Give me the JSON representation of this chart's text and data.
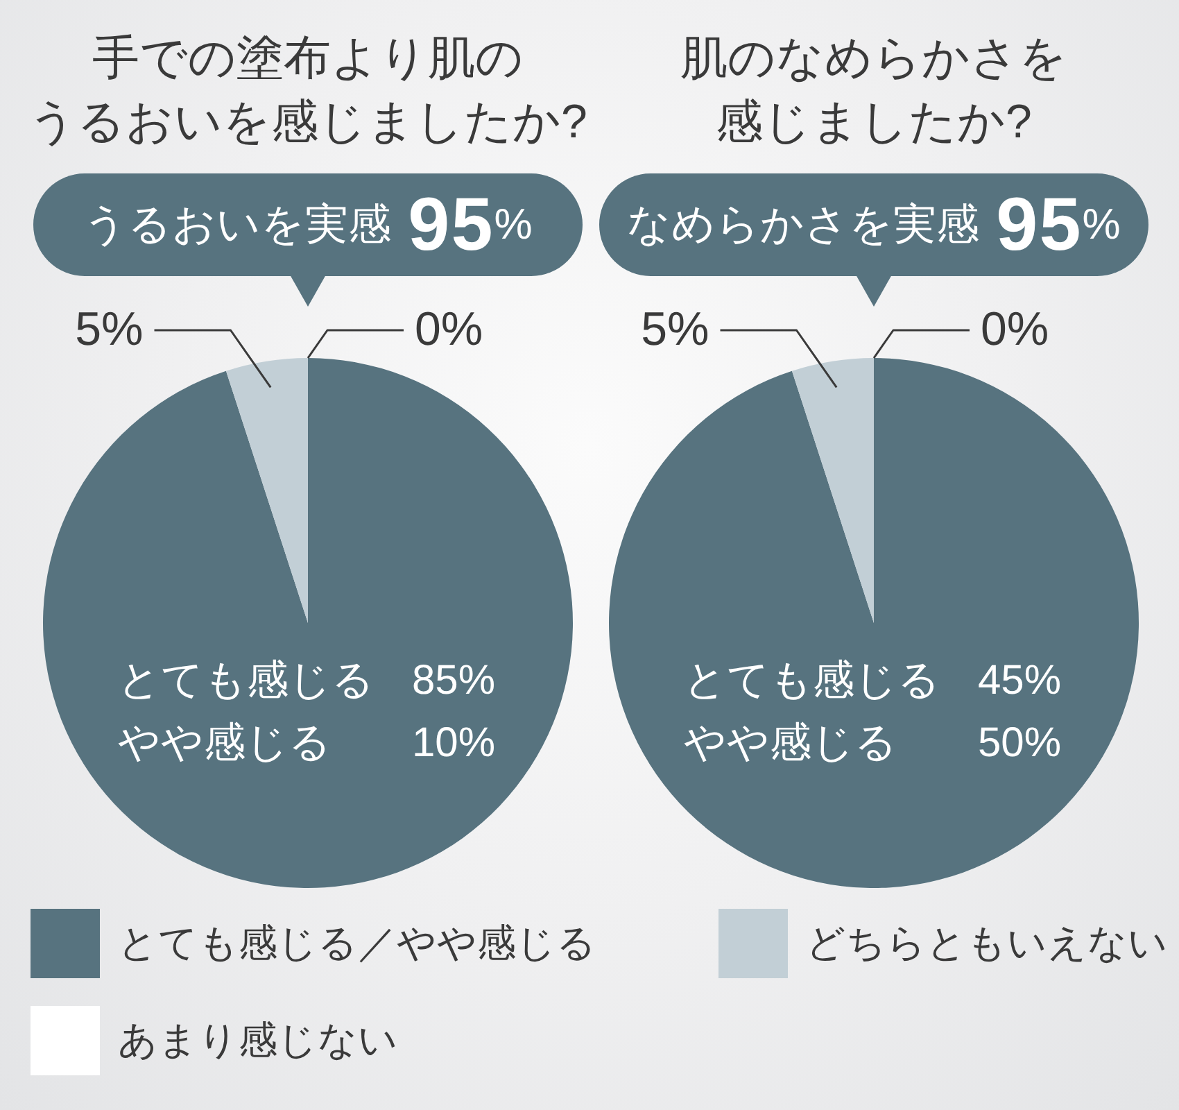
{
  "chart_data": [
    {
      "type": "pie",
      "title": "手での塗布より肌のうるおいを感じましたか?",
      "categories": [
        "とても感じる／やや感じる",
        "どちらともいえない",
        "あまり感じない"
      ],
      "values": [
        95,
        5,
        0
      ],
      "colors": [
        "#57737f",
        "#c2cfd6",
        "#ffffff"
      ],
      "value_labels": [
        null,
        "5%",
        "0%"
      ],
      "annotations": [
        "うるおいを実感95%",
        "とても感じる 85%",
        "やや感じる 10%"
      ],
      "legend": "bottom"
    },
    {
      "type": "pie",
      "title": "肌のなめらかさを感じましたか?",
      "values": [
        95,
        5,
        0
      ],
      "colors": [
        "#57737f",
        "#c2cfd6",
        "#ffffff"
      ],
      "value_labels": [
        null,
        "5%",
        "0%"
      ],
      "annotations": [
        "なめらかさを実感95%",
        "とても感じる 45%",
        "やや感じる 50%"
      ]
    }
  ]
}
